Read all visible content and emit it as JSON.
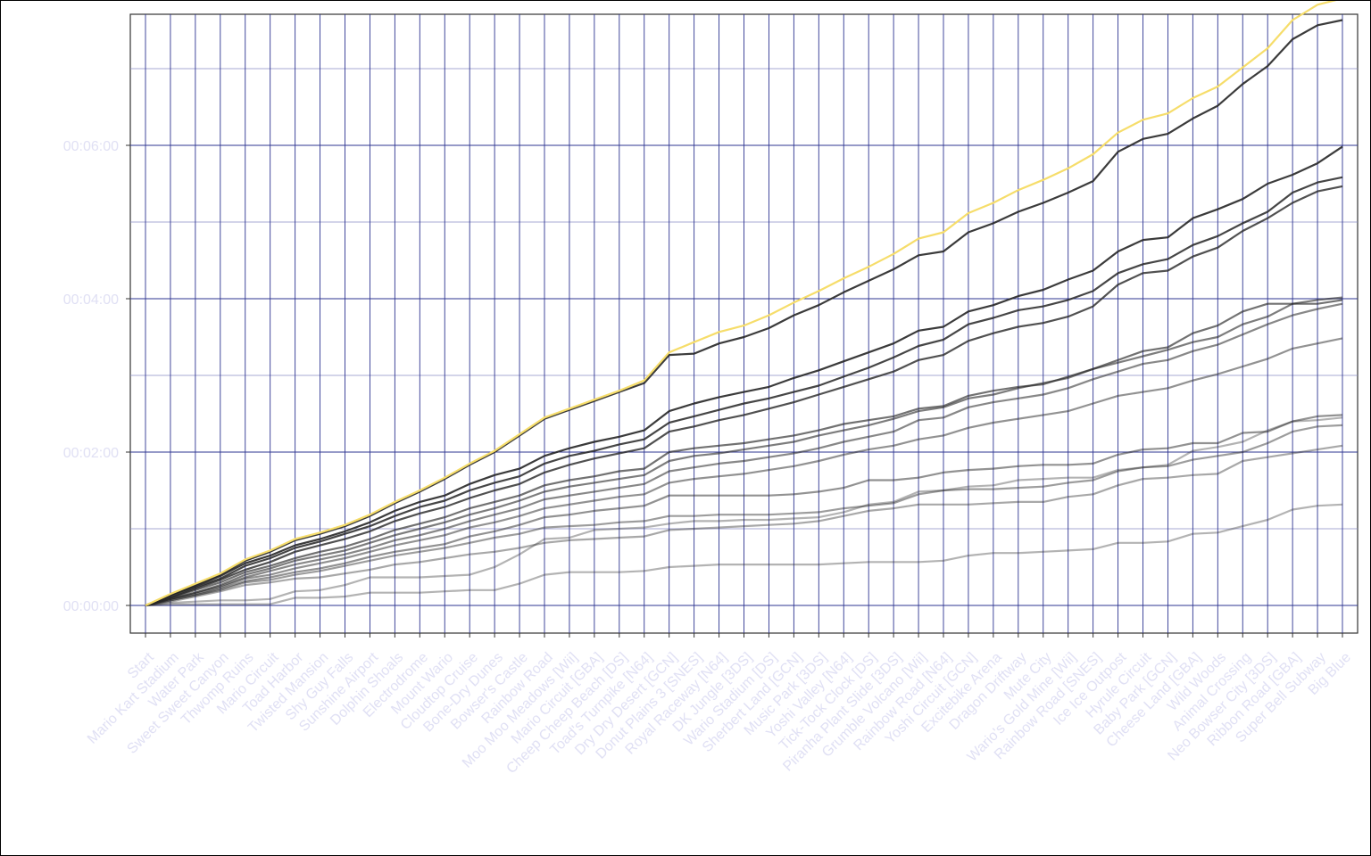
{
  "chart_data": {
    "type": "line",
    "title": "",
    "xlabel": "",
    "ylabel": "",
    "categories": [
      "Start",
      "Mario Kart Stadium",
      "Water Park",
      "Sweet Sweet Canyon",
      "Thwomp Ruins",
      "Mario Circuit",
      "Toad Harbor",
      "Twisted Mansion",
      "Shy Guy Falls",
      "Sunshine Airport",
      "Dolphin Shoals",
      "Electrodrome",
      "Mount Wario",
      "Cloudtop Cruise",
      "Bone-Dry Dunes",
      "Bowser's Castle",
      "Rainbow Road",
      "Moo Moo Meadows [Wii]",
      "Mario Circuit [GBA]",
      "Cheep Cheep Beach [DS]",
      "Toad's Turnpike [N64]",
      "Dry Dry Desert [GCN]",
      "Donut Plains 3 [SNES]",
      "Royal Raceway [N64]",
      "DK Jungle [3DS]",
      "Wario Stadium [DS]",
      "Sherbert Land [GCN]",
      "Music Park [3DS]",
      "Yoshi Valley [N64]",
      "Tick-Tock Clock [DS]",
      "Piranha Plant Slide [3DS]",
      "Grumble Volcano [Wii]",
      "Rainbow Road [N64]",
      "Yoshi Circuit [GCN]",
      "Excitebike Arena",
      "Dragon Driftway",
      "Mute City",
      "Wario's Gold Mine [Wii]",
      "Rainbow Road [SNES]",
      "Ice Ice Outpost",
      "Hyrule Circuit",
      "Baby Park [GCN]",
      "Cheese Land [GBA]",
      "Wild Woods",
      "Animal Crossing",
      "Neo Bowser City [3DS]",
      "Ribbon Road [GBA]",
      "Super Bell Subway",
      "Big Blue"
    ],
    "y_unit": "seconds",
    "ylim": [
      -20,
      510
    ],
    "y_ticks": [
      0,
      120,
      240,
      360
    ],
    "y_tick_labels": [
      "00:00:00",
      "00:02:00",
      "00:04:00",
      "00:06:00"
    ],
    "grid": true,
    "legend": "none",
    "series": [
      {
        "color": "#f6dd6a",
        "opacity": 1.0,
        "values": [
          0,
          9,
          17,
          25,
          36,
          43,
          52,
          57,
          63,
          71,
          81,
          90,
          100,
          111,
          121,
          134,
          147,
          154,
          161,
          168,
          176,
          198,
          206,
          214,
          219,
          227,
          237,
          246,
          256,
          265,
          275,
          287,
          292,
          307,
          315,
          325,
          333,
          342,
          353,
          370,
          380,
          385,
          397,
          406,
          421,
          436,
          458,
          470,
          475
        ]
      },
      {
        "color": "#262626",
        "opacity": 0.9,
        "values": [
          0,
          8,
          16,
          24,
          35,
          42,
          51,
          56,
          62,
          70,
          80,
          89,
          99,
          110,
          120,
          133,
          146,
          153,
          160,
          167,
          174,
          196,
          197,
          205,
          210,
          217,
          227,
          235,
          245,
          254,
          263,
          274,
          277,
          292,
          299,
          308,
          315,
          323,
          332,
          355,
          365,
          369,
          381,
          391,
          408,
          422,
          443,
          454,
          458
        ]
      },
      {
        "color": "#262626",
        "opacity": 0.9,
        "values": [
          0,
          8,
          15,
          23,
          33,
          39,
          47,
          52,
          58,
          65,
          74,
          81,
          86,
          95,
          102,
          107,
          117,
          123,
          128,
          132,
          137,
          152,
          158,
          163,
          167,
          171,
          178,
          184,
          191,
          198,
          205,
          215,
          218,
          230,
          235,
          242,
          247,
          255,
          262,
          277,
          286,
          288,
          303,
          310,
          318,
          330,
          337,
          346,
          359
        ]
      },
      {
        "color": "#262626",
        "opacity": 0.85,
        "values": [
          0,
          7,
          14,
          21,
          31,
          37,
          45,
          50,
          56,
          62,
          70,
          77,
          82,
          90,
          96,
          101,
          111,
          117,
          121,
          126,
          130,
          143,
          148,
          153,
          158,
          162,
          167,
          172,
          179,
          186,
          194,
          203,
          208,
          220,
          225,
          231,
          234,
          239,
          246,
          260,
          267,
          271,
          282,
          289,
          299,
          308,
          323,
          331,
          335
        ]
      },
      {
        "color": "#262626",
        "opacity": 0.8,
        "values": [
          0,
          6,
          13,
          20,
          28,
          34,
          42,
          47,
          52,
          58,
          66,
          72,
          77,
          84,
          90,
          95,
          104,
          110,
          115,
          119,
          123,
          136,
          140,
          145,
          149,
          154,
          159,
          165,
          171,
          177,
          183,
          192,
          196,
          207,
          213,
          218,
          221,
          226,
          234,
          251,
          260,
          262,
          273,
          280,
          293,
          303,
          315,
          324,
          328
        ]
      },
      {
        "color": "#262626",
        "opacity": 0.65,
        "values": [
          0,
          6,
          12,
          18,
          26,
          31,
          37,
          42,
          46,
          52,
          59,
          64,
          69,
          76,
          81,
          86,
          94,
          98,
          101,
          105,
          107,
          120,
          123,
          125,
          127,
          130,
          133,
          137,
          142,
          145,
          148,
          154,
          156,
          164,
          168,
          171,
          173,
          179,
          185,
          192,
          199,
          202,
          213,
          219,
          230,
          236,
          236,
          236,
          239
        ]
      },
      {
        "color": "#262626",
        "opacity": 0.6,
        "values": [
          0,
          5,
          10,
          16,
          24,
          29,
          35,
          39,
          43,
          49,
          55,
          60,
          65,
          71,
          76,
          82,
          89,
          93,
          96,
          99,
          102,
          113,
          117,
          119,
          122,
          125,
          128,
          133,
          137,
          141,
          146,
          152,
          155,
          162,
          165,
          170,
          174,
          178,
          185,
          190,
          195,
          200,
          206,
          210,
          220,
          226,
          236,
          239,
          241
        ]
      },
      {
        "color": "#262626",
        "opacity": 0.55,
        "values": [
          0,
          5,
          10,
          15,
          22,
          27,
          32,
          36,
          40,
          45,
          51,
          55,
          60,
          66,
          71,
          76,
          83,
          86,
          89,
          92,
          95,
          105,
          108,
          111,
          113,
          116,
          119,
          123,
          128,
          132,
          136,
          145,
          147,
          155,
          159,
          162,
          165,
          170,
          177,
          183,
          189,
          192,
          199,
          204,
          212,
          220,
          227,
          232,
          236
        ]
      },
      {
        "color": "#262626",
        "opacity": 0.5,
        "values": [
          0,
          5,
          9,
          14,
          21,
          24,
          29,
          33,
          37,
          42,
          47,
          51,
          55,
          61,
          65,
          70,
          76,
          79,
          82,
          85,
          87,
          96,
          99,
          101,
          103,
          106,
          109,
          113,
          118,
          122,
          125,
          130,
          133,
          139,
          143,
          146,
          149,
          152,
          158,
          164,
          167,
          170,
          176,
          181,
          187,
          193,
          201,
          205,
          209
        ]
      },
      {
        "color": "#262626",
        "opacity": 0.5,
        "values": [
          0,
          4,
          8,
          13,
          19,
          22,
          26,
          29,
          33,
          38,
          42,
          45,
          48,
          54,
          58,
          63,
          69,
          71,
          74,
          76,
          78,
          86,
          86,
          86,
          86,
          86,
          87,
          89,
          92,
          98,
          98,
          100,
          104,
          106,
          107,
          109,
          110,
          110,
          111,
          118,
          122,
          123,
          127,
          127,
          135,
          136,
          144,
          148,
          149
        ]
      },
      {
        "color": "#262626",
        "opacity": 0.45,
        "values": [
          0,
          4,
          8,
          12,
          18,
          20,
          24,
          27,
          31,
          35,
          39,
          42,
          45,
          49,
          53,
          56,
          61,
          62,
          63,
          65,
          66,
          70,
          70,
          71,
          71,
          71,
          72,
          73,
          76,
          78,
          80,
          87,
          90,
          91,
          91,
          92,
          93,
          96,
          98,
          105,
          108,
          109,
          114,
          117,
          120,
          127,
          136,
          140,
          141
        ]
      },
      {
        "color": "#262626",
        "opacity": 0.4,
        "values": [
          0,
          3,
          7,
          11,
          16,
          18,
          21,
          22,
          25,
          28,
          32,
          34,
          37,
          40,
          42,
          45,
          49,
          51,
          52,
          53,
          54,
          59,
          60,
          61,
          62,
          63,
          64,
          66,
          70,
          74,
          76,
          79,
          79,
          79,
          80,
          81,
          81,
          85,
          87,
          94,
          99,
          100,
          102,
          103,
          113,
          116,
          119,
          122,
          125
        ]
      },
      {
        "color": "#262626",
        "opacity": 0.35,
        "values": [
          0,
          2,
          3,
          4,
          4,
          5,
          11,
          12,
          16,
          22,
          22,
          22,
          23,
          24,
          30,
          40,
          52,
          53,
          59,
          60,
          61,
          64,
          66,
          66,
          67,
          67,
          68,
          69,
          73,
          79,
          81,
          89,
          90,
          93,
          94,
          98,
          99,
          100,
          100,
          106,
          108,
          110,
          121,
          124,
          128,
          137,
          144,
          145,
          147
        ]
      },
      {
        "color": "#262626",
        "opacity": 0.35,
        "values": [
          0,
          1,
          1,
          1,
          1,
          1,
          6,
          6,
          7,
          10,
          10,
          10,
          11,
          12,
          12,
          17,
          24,
          26,
          26,
          26,
          27,
          30,
          31,
          32,
          32,
          32,
          32,
          32,
          33,
          34,
          34,
          34,
          35,
          39,
          41,
          41,
          42,
          43,
          44,
          49,
          49,
          50,
          56,
          57,
          62,
          67,
          75,
          78,
          79
        ]
      }
    ]
  }
}
